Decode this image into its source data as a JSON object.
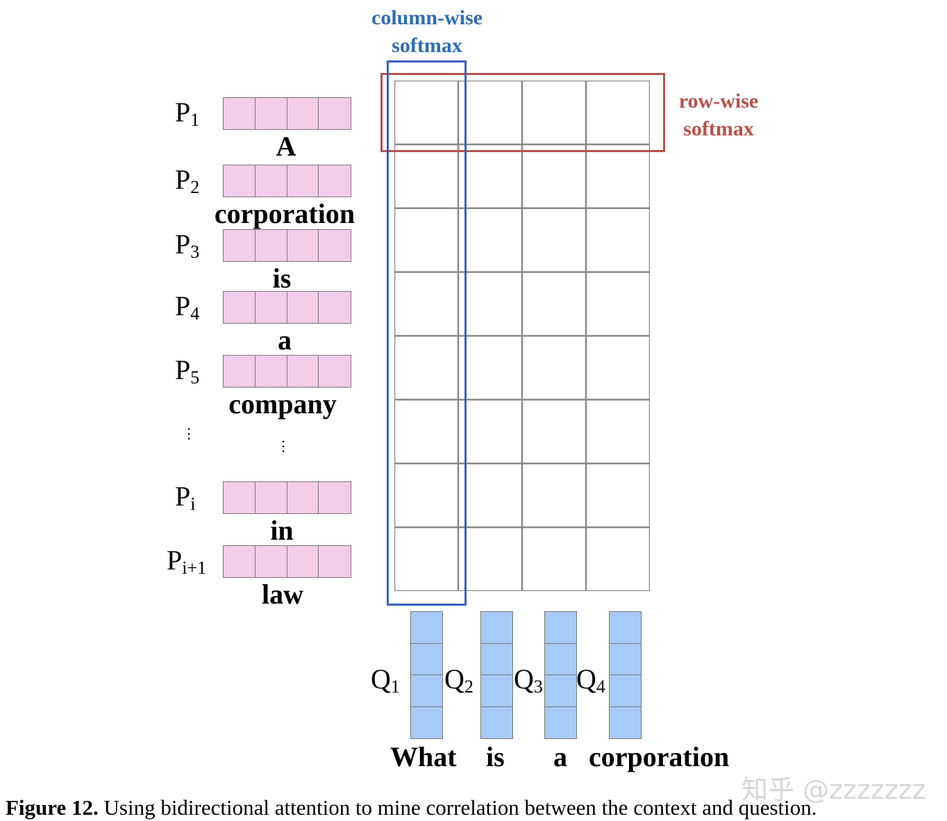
{
  "softmax_labels": {
    "column": {
      "line1": "column-wise",
      "line2": "softmax",
      "color": "#2e6db4"
    },
    "row": {
      "line1": "row-wise",
      "line2": "softmax",
      "color": "#b5534b"
    }
  },
  "passage": [
    {
      "label": "P",
      "sub": "1",
      "word": "A"
    },
    {
      "label": "P",
      "sub": "2",
      "word": "corporation"
    },
    {
      "label": "P",
      "sub": "3",
      "word": "is"
    },
    {
      "label": "P",
      "sub": "4",
      "word": "a"
    },
    {
      "label": "P",
      "sub": "5",
      "word": "company"
    },
    {
      "label": "P",
      "sub": "i",
      "word": "in"
    },
    {
      "label": "P",
      "sub": "i+1",
      "word": "law"
    }
  ],
  "ellipsis": "⋮",
  "question": [
    {
      "label": "Q",
      "sub": "1",
      "word": "What"
    },
    {
      "label": "Q",
      "sub": "2",
      "word": "is"
    },
    {
      "label": "Q",
      "sub": "3",
      "word": "a"
    },
    {
      "label": "Q",
      "sub": "4",
      "word": "corporation"
    }
  ],
  "matrix": {
    "rows": 8,
    "cols": 4
  },
  "colors": {
    "passage_vector": "#f4cce9",
    "question_vector": "#a6cbf6",
    "column_box": "#3a5fc0",
    "row_box": "#b5534b"
  },
  "watermark": "知乎 @zzzzzzz",
  "caption": {
    "label": "Figure 12.",
    "text": " Using bidirectional attention to mine correlation between the context and question."
  }
}
